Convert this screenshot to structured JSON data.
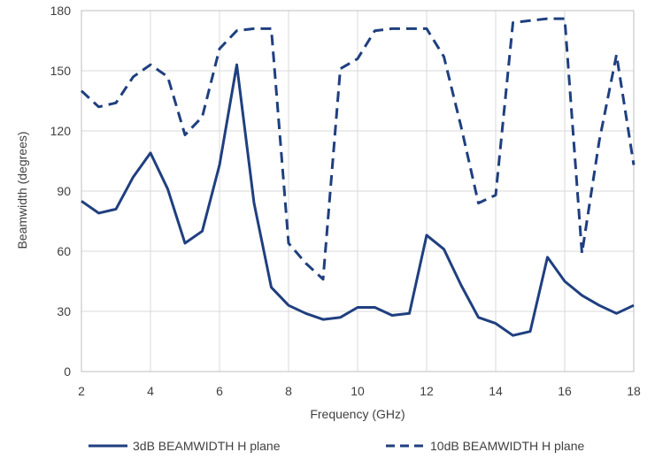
{
  "chart_data": {
    "type": "line",
    "xlabel": "Frequency (GHz)",
    "ylabel": "Beamwidth (degrees)",
    "xlim": [
      2,
      18
    ],
    "ylim": [
      0,
      180
    ],
    "xticks": [
      2,
      4,
      6,
      8,
      10,
      12,
      14,
      16,
      18
    ],
    "yticks": [
      0,
      30,
      60,
      90,
      120,
      150,
      180
    ],
    "grid": true,
    "legend_position": "bottom",
    "x": [
      2,
      2.5,
      3,
      3.5,
      4,
      4.5,
      5,
      5.5,
      6,
      6.5,
      7,
      7.5,
      8,
      8.5,
      9,
      9.5,
      10,
      10.5,
      11,
      11.5,
      12,
      12.5,
      13,
      13.5,
      14,
      14.5,
      15,
      15.5,
      16,
      16.5,
      17,
      17.5,
      18
    ],
    "series": [
      {
        "name": "3dB BEAMWIDTH H plane",
        "style": "solid",
        "color": "#1f3f7f",
        "values": [
          85,
          79,
          81,
          97,
          109,
          91,
          64,
          70,
          103,
          153,
          84,
          42,
          33,
          29,
          26,
          27,
          32,
          32,
          28,
          29,
          68,
          61,
          43,
          27,
          24,
          18,
          20,
          57,
          45,
          38,
          33,
          29,
          33
        ]
      },
      {
        "name": "10dB BEAMWIDTH H plane",
        "style": "dashed",
        "color": "#1f3f7f",
        "values": [
          140,
          132,
          134,
          147,
          153,
          147,
          118,
          127,
          161,
          170,
          171,
          171,
          64,
          54,
          46,
          151,
          156,
          170,
          171,
          171,
          171,
          157,
          122,
          84,
          88,
          174,
          175,
          176,
          176,
          59,
          115,
          158,
          103
        ]
      }
    ]
  }
}
